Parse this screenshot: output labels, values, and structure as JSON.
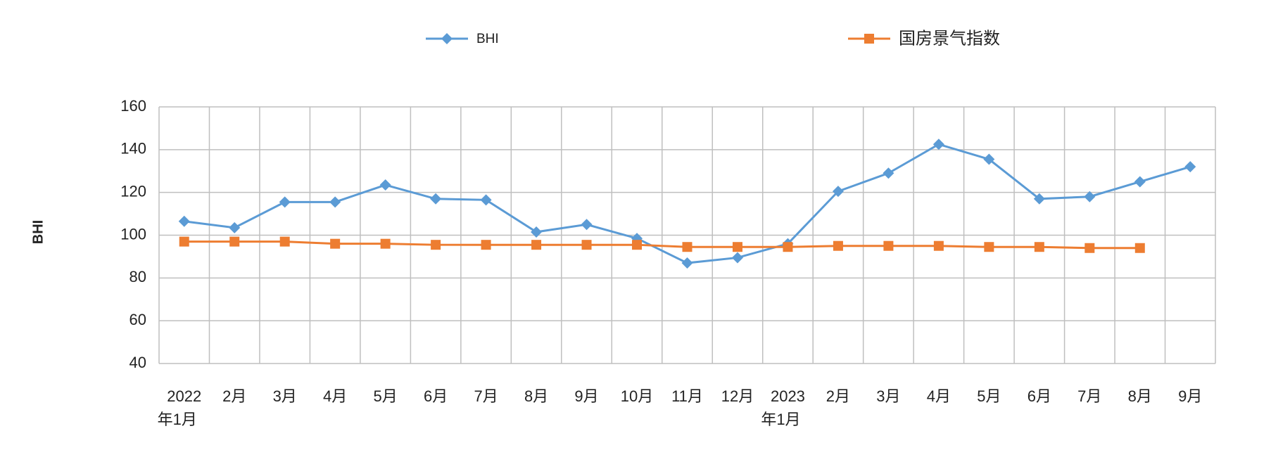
{
  "chart_data": {
    "type": "line",
    "y_label": "BHI",
    "categories": [
      "2022年1月",
      "2月",
      "3月",
      "4月",
      "5月",
      "6月",
      "7月",
      "8月",
      "9月",
      "10月",
      "11月",
      "12月",
      "2023年1月",
      "2月",
      "3月",
      "4月",
      "5月",
      "6月",
      "7月",
      "8月",
      "9月"
    ],
    "series": [
      {
        "name": "BHI",
        "color": "#5b9bd5",
        "marker": "diamond",
        "values": [
          106.5,
          103.5,
          115.5,
          115.5,
          123.5,
          117,
          116.5,
          101.5,
          105,
          98.5,
          87,
          89.5,
          96,
          120.5,
          129,
          142.5,
          135.5,
          117,
          118,
          125,
          132
        ]
      },
      {
        "name": "国房景气指数",
        "color": "#ed7d31",
        "marker": "square",
        "values": [
          97,
          97,
          97,
          96,
          96,
          95.5,
          95.5,
          95.5,
          95.5,
          95.5,
          94.5,
          94.5,
          94.5,
          95,
          95,
          95,
          94.5,
          94.5,
          94,
          94,
          null
        ]
      }
    ],
    "ylim": [
      40,
      160
    ],
    "yticks": [
      40,
      60,
      80,
      100,
      120,
      140,
      160
    ],
    "grid": true,
    "legend": "top"
  }
}
